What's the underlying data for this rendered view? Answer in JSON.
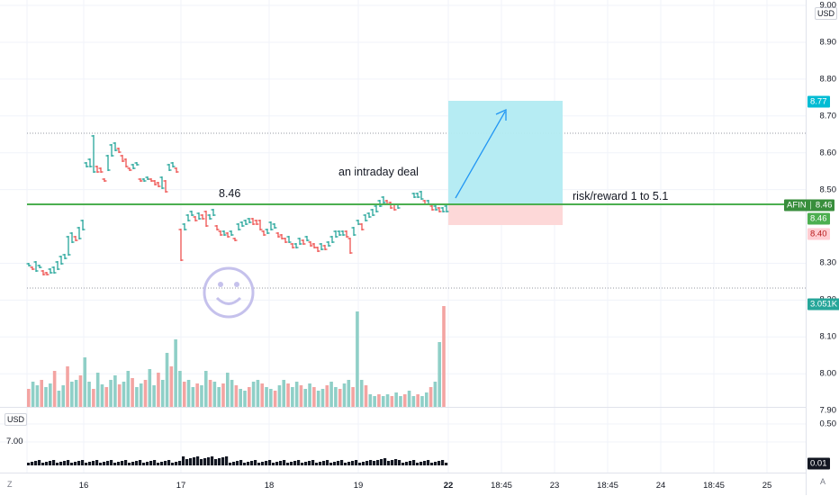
{
  "currency": "USD",
  "price_axis": {
    "labels": [
      "9.00",
      "8.90",
      "8.80",
      "8.70",
      "8.60",
      "8.50",
      "8.30",
      "8.20",
      "8.10",
      "8.00",
      "7.90"
    ],
    "values": [
      9.0,
      8.9,
      8.8,
      8.7,
      8.6,
      8.5,
      8.3,
      8.2,
      8.1,
      8.0,
      7.9
    ]
  },
  "price_tags": {
    "target": {
      "text": "8.77",
      "color": "#00bcd4"
    },
    "symbol": {
      "name": "AFIN",
      "price": "8.46",
      "color": "#388e3c"
    },
    "last": {
      "text": "8.46",
      "color": "#4caf50"
    },
    "stop": {
      "text": "8.40",
      "color": "#ffcdd2",
      "text_color": "#b71c1c"
    },
    "volume": {
      "text": "3.051K",
      "color": "#26a69a"
    }
  },
  "annotations": {
    "level_label": "8.46",
    "trade_label": "an intraday deal",
    "rr_label": "risk/reward 1 to 5.1"
  },
  "time_axis": {
    "labels": [
      "16",
      "17",
      "18",
      "19",
      "22",
      "18:45",
      "23",
      "18:45",
      "24",
      "18:45",
      "25"
    ],
    "bold": [
      false,
      false,
      false,
      false,
      true,
      false,
      false,
      false,
      false,
      false,
      false
    ]
  },
  "indicator_pane": {
    "currency": "USD",
    "left_value": "7.00",
    "axis_label": "0.50",
    "value_tag": "0.01"
  },
  "corner_left": "Z",
  "corner_right": "A",
  "colors": {
    "up": "#26a69a",
    "down": "#ef5350",
    "up_volume": "#8fcfc7",
    "down_volume": "#f3a4a2",
    "level": "#4caf50",
    "target_zone": "#b2ebf2",
    "stop_zone": "#fdd8d8",
    "arrow": "#2196f3"
  }
}
